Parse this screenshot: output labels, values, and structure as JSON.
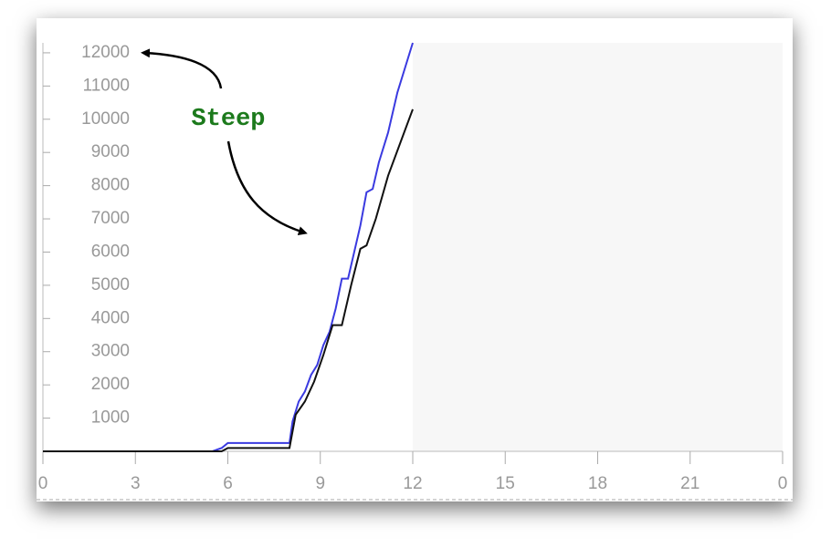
{
  "chart_data": {
    "type": "line",
    "annotation": "Steep",
    "xlim": [
      0,
      24
    ],
    "xticks": [
      0,
      3,
      6,
      9,
      12,
      15,
      18,
      21,
      {
        "value": 24,
        "label": "0"
      }
    ],
    "ylim": [
      0,
      12300
    ],
    "yticks": [
      1000,
      2000,
      3000,
      4000,
      5000,
      6000,
      7000,
      8000,
      9000,
      10000,
      11000,
      12000
    ],
    "shaded_xrange": [
      12,
      24
    ],
    "series": [
      {
        "color": "#3a3ae0",
        "x": [
          0,
          5.5,
          5.8,
          6,
          8,
          8.1,
          8.3,
          8.5,
          8.7,
          8.9,
          9.1,
          9.3,
          9.5,
          9.7,
          9.9,
          10.1,
          10.3,
          10.5,
          10.7,
          10.9,
          11.2,
          11.5,
          12
        ],
        "values": [
          0,
          0,
          100,
          250,
          250,
          900,
          1500,
          1800,
          2300,
          2600,
          3200,
          3600,
          4300,
          5200,
          5200,
          6000,
          6800,
          7800,
          7900,
          8700,
          9600,
          10800,
          12300
        ]
      },
      {
        "color": "#111111",
        "x": [
          0,
          5.8,
          6,
          8,
          8.2,
          8.5,
          8.8,
          9.1,
          9.4,
          9.7,
          10,
          10.3,
          10.5,
          10.8,
          11.2,
          11.6,
          12
        ],
        "values": [
          0,
          0,
          100,
          100,
          1100,
          1500,
          2100,
          2900,
          3800,
          3800,
          5000,
          6100,
          6200,
          7000,
          8300,
          9300,
          10300
        ]
      }
    ]
  }
}
